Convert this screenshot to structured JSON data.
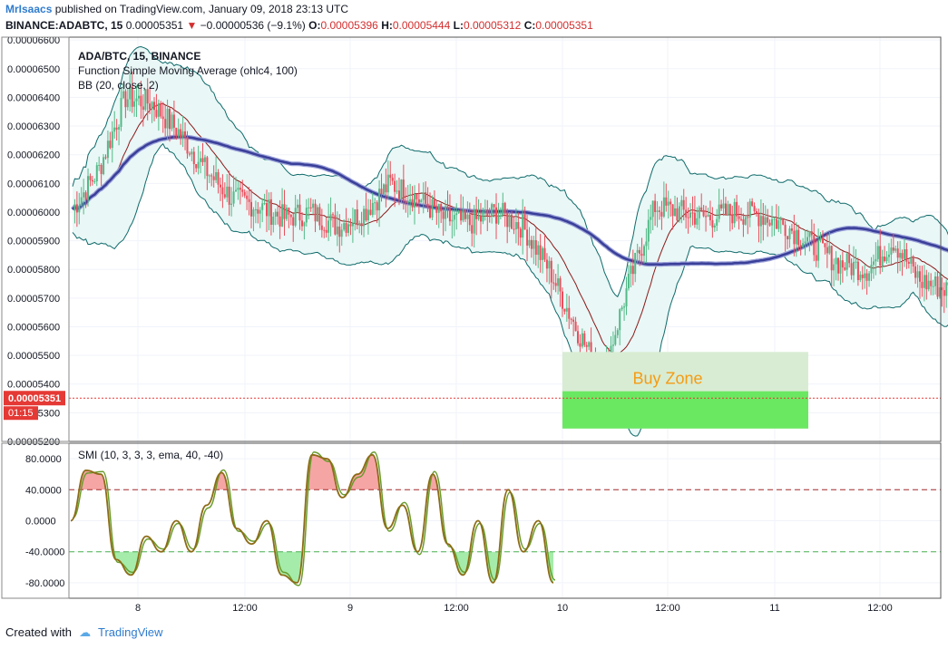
{
  "header": {
    "author": "MrIsaacs",
    "published_text": "published on TradingView.com, January 09, 2018 23:13 UTC",
    "symbol": "BINANCE:ADABTC, 15",
    "last": "0.00005351",
    "arrow": "▼",
    "change": "−0.00000536 (−9.1%)",
    "o_label": "O:",
    "o": "0.00005396",
    "h_label": "H:",
    "h": "0.00005444",
    "l_label": "L:",
    "l": "0.00005312",
    "c_label": "C:",
    "c": "0.00005351"
  },
  "legend": {
    "line1": "ADA/BTC, 15, BINANCE",
    "line2": "Function Simple Moving Average (ohlc4, 100)",
    "line3": "BB (20, close, 2)",
    "smi": "SMI (10, 3, 3, 3, ema, 40, -40)"
  },
  "price_badge": "0.00005351",
  "timer_badge": "01:15",
  "buy_zone_label": "Buy Zone",
  "footer": {
    "created_with": "Created with",
    "brand": "TradingView"
  },
  "colors": {
    "up": "#53b987",
    "down": "#eb4d5c",
    "sma": "#3a3f99",
    "bb": "#0f6a6a",
    "bb_fill": "#e9f7f6",
    "buy_zone_light": "#d8ecd3",
    "buy_zone_dark": "#6ae862",
    "buy_zone_text": "#f59b13",
    "smi_line": "#8d6b16",
    "smi_signal": "#6a9c2c"
  },
  "chart_data": [
    {
      "type": "candlestick",
      "title": "ADA/BTC, 15, BINANCE",
      "ylim": [
        5.2e-05,
        6.61e-05
      ],
      "y_ticks": [
        "0.00006600",
        "0.00006500",
        "0.00006400",
        "0.00006300",
        "0.00006200",
        "0.00006100",
        "0.00006000",
        "0.00005900",
        "0.00005800",
        "0.00005700",
        "0.00005600",
        "0.00005500",
        "0.00005400",
        "0.00005300",
        "0.00005200"
      ],
      "x_ticks": [
        "8",
        "12:00",
        "9",
        "12:00",
        "10",
        "12:00",
        "11",
        "12:00"
      ],
      "approx_path": [
        [
          0,
          6.01e-05
        ],
        [
          2,
          6.15e-05
        ],
        [
          4,
          6.4e-05
        ],
        [
          6,
          6.38e-05
        ],
        [
          8,
          6.28e-05
        ],
        [
          10,
          6.15e-05
        ],
        [
          12,
          6.05e-05
        ],
        [
          14,
          6.02e-05
        ],
        [
          16,
          5.98e-05
        ],
        [
          18,
          6e-05
        ],
        [
          20,
          5.95e-05
        ],
        [
          22,
          6e-05
        ],
        [
          24,
          6.1e-05
        ],
        [
          26,
          6.05e-05
        ],
        [
          28,
          5.98e-05
        ],
        [
          30,
          5.96e-05
        ],
        [
          32,
          6e-05
        ],
        [
          34,
          5.95e-05
        ],
        [
          36,
          5.8e-05
        ],
        [
          38,
          5.6e-05
        ],
        [
          40,
          5.42e-05
        ],
        [
          42,
          5.75e-05
        ],
        [
          44,
          6.02e-05
        ],
        [
          46,
          6e-05
        ],
        [
          48,
          5.98e-05
        ],
        [
          50,
          6e-05
        ],
        [
          52,
          5.99e-05
        ],
        [
          54,
          5.95e-05
        ],
        [
          56,
          5.88e-05
        ],
        [
          58,
          5.82e-05
        ],
        [
          60,
          5.8e-05
        ],
        [
          62,
          5.9e-05
        ],
        [
          64,
          5.76e-05
        ],
        [
          66,
          5.73e-05
        ],
        [
          68,
          5.7e-05
        ],
        [
          70,
          5.65e-05
        ],
        [
          72,
          5.55e-05
        ],
        [
          74,
          5.72e-05
        ],
        [
          76,
          5.65e-05
        ],
        [
          78,
          5.7e-05
        ],
        [
          80,
          5.7e-05
        ],
        [
          82,
          5.62e-05
        ],
        [
          84,
          5.55e-05
        ],
        [
          85,
          5.4e-05
        ],
        [
          86,
          5.351e-05
        ]
      ],
      "sma_label": "Function Simple Moving Average (ohlc4, 100)",
      "bb_label": "BB (20, close, 2)",
      "last_price": 5.351e-05,
      "buy_zone": {
        "top": 5.512e-05,
        "bottom": 5.245e-05,
        "inner_top": 5.375e-05,
        "label": "Buy Zone"
      }
    },
    {
      "type": "line",
      "title": "SMI (10, 3, 3, 3, ema, 40, -40)",
      "ylim": [
        -100,
        100
      ],
      "y_ticks": [
        "80.0000",
        "40.0000",
        "0.0000",
        "-40.0000",
        "-80.0000"
      ],
      "levels": [
        40,
        -40
      ],
      "approx_values": [
        0,
        65,
        60,
        -50,
        -70,
        -20,
        -40,
        0,
        -40,
        20,
        62,
        -10,
        -30,
        0,
        -70,
        -80,
        85,
        80,
        30,
        60,
        85,
        -10,
        20,
        -40,
        60,
        -30,
        -70,
        0,
        -80,
        40,
        -40,
        0,
        -80
      ]
    }
  ]
}
